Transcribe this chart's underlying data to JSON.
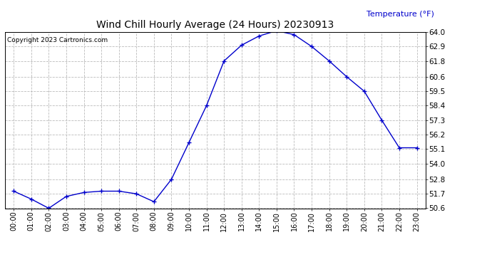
{
  "title": "Wind Chill Hourly Average (24 Hours) 20230913",
  "copyright_text": "Copyright 2023 Cartronics.com",
  "ylabel": "Temperature (°F)",
  "hours": [
    "00:00",
    "01:00",
    "02:00",
    "03:00",
    "04:00",
    "05:00",
    "06:00",
    "07:00",
    "08:00",
    "09:00",
    "10:00",
    "11:00",
    "12:00",
    "13:00",
    "14:00",
    "15:00",
    "16:00",
    "17:00",
    "18:00",
    "19:00",
    "20:00",
    "21:00",
    "22:00",
    "23:00"
  ],
  "values": [
    51.9,
    51.3,
    50.6,
    51.5,
    51.8,
    51.9,
    51.9,
    51.7,
    51.1,
    52.8,
    55.6,
    58.4,
    61.8,
    63.0,
    63.7,
    64.1,
    63.8,
    62.9,
    61.8,
    60.6,
    59.5,
    57.3,
    55.2,
    55.2
  ],
  "line_color": "#0000cc",
  "marker": "+",
  "marker_size": 4,
  "ylabel_color": "#0000cc",
  "title_color": "#000000",
  "copyright_color": "#000000",
  "background_color": "#ffffff",
  "grid_color": "#bbbbbb",
  "ylim_min": 50.6,
  "ylim_max": 64.0,
  "yticks": [
    50.6,
    51.7,
    52.8,
    54.0,
    55.1,
    56.2,
    57.3,
    58.4,
    59.5,
    60.6,
    61.8,
    62.9,
    64.0
  ]
}
